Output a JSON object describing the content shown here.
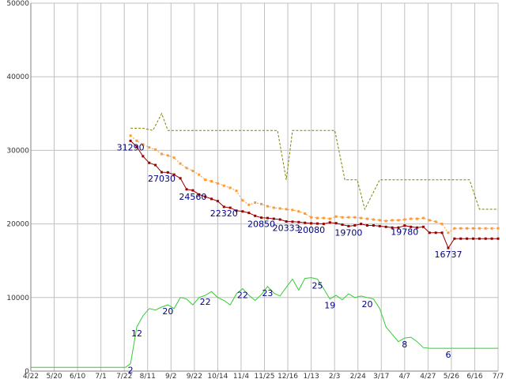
{
  "chart_data": {
    "type": "line",
    "title": "",
    "xlabel": "",
    "ylabel": "",
    "ylim": [
      0,
      50000
    ],
    "y_ticks": [
      0,
      10000,
      20000,
      30000,
      40000,
      50000
    ],
    "y_tick_labels": [
      "0",
      "10000",
      "20000",
      "30000",
      "40000",
      "50000"
    ],
    "x_tick_labels": [
      "4/22",
      "5/20",
      "6/10",
      "7/1",
      "7/22",
      "8/11",
      "9/2",
      "9/22",
      "10/14",
      "11/4",
      "11/25",
      "12/16",
      "1/13",
      "2/3",
      "2/24",
      "3/17",
      "4/7",
      "4/27",
      "5/26",
      "6/16",
      "7/7"
    ],
    "grid": true,
    "legend": "none",
    "series": [
      {
        "color": "#990000",
        "style": "solid-markers",
        "x": [
          7.0,
          7.25,
          7.5,
          7.75,
          8.0,
          8.25,
          8.5,
          8.75,
          9.0,
          9.25,
          9.5,
          9.75,
          10.0,
          10.25,
          10.5,
          10.75,
          11.0,
          11.25,
          11.5,
          11.75,
          12.0,
          12.25,
          12.5,
          12.75,
          13.0,
          13.25,
          13.5,
          13.75,
          14.0,
          14.25,
          14.5,
          14.75,
          15.0,
          15.25,
          15.5,
          15.75,
          16.0,
          16.25,
          16.5,
          16.75,
          17.0,
          17.25,
          17.5,
          17.75,
          18.0,
          18.25,
          18.5,
          18.75,
          19.0,
          19.25,
          19.5,
          19.75,
          20.0,
          20.25,
          20.5,
          20.75,
          21.0,
          21.25,
          21.5,
          21.75
        ],
        "y": [
          31290,
          30500,
          29200,
          28300,
          28000,
          27030,
          27000,
          26700,
          26200,
          24700,
          24560,
          24000,
          23700,
          23400,
          23100,
          22320,
          22200,
          21800,
          21700,
          21500,
          21100,
          20850,
          20800,
          20700,
          20600,
          20333,
          20300,
          20250,
          20150,
          20080,
          20050,
          20000,
          20200,
          20100,
          19900,
          19700,
          19800,
          20000,
          19800,
          19800,
          19700,
          19600,
          19500,
          19500,
          19780,
          19600,
          19500,
          19600,
          18800,
          18800,
          18800,
          16737,
          18000,
          18000,
          18000,
          18000,
          18000,
          18000,
          18000,
          18000
        ]
      },
      {
        "color": "#ff9933",
        "style": "dotted-markers",
        "x": [
          7.0,
          7.25,
          7.5,
          7.75,
          8.0,
          8.25,
          8.5,
          8.75,
          9.0,
          9.25,
          9.5,
          9.75,
          10.0,
          10.25,
          10.5,
          10.75,
          11.0,
          11.25,
          11.5,
          11.75,
          12.0,
          12.25,
          12.5,
          12.75,
          13.0,
          13.25,
          13.5,
          13.75,
          14.0,
          14.25,
          14.5,
          14.75,
          15.0,
          15.25,
          15.5,
          15.75,
          16.0,
          16.25,
          16.5,
          16.75,
          17.0,
          17.25,
          17.5,
          17.75,
          18.0,
          18.25,
          18.5,
          18.75,
          19.0,
          19.25,
          19.5,
          19.75,
          20.0,
          20.25,
          20.5,
          20.75,
          21.0,
          21.25,
          21.5,
          21.75
        ],
        "y": [
          32000,
          31300,
          30800,
          30400,
          30100,
          29500,
          29300,
          29000,
          28200,
          27600,
          27200,
          26700,
          26000,
          25800,
          25500,
          25200,
          24900,
          24500,
          23200,
          22600,
          22900,
          22700,
          22400,
          22200,
          22100,
          22000,
          21900,
          21700,
          21400,
          20900,
          20800,
          20800,
          20700,
          21000,
          20900,
          20900,
          20900,
          20800,
          20700,
          20600,
          20500,
          20400,
          20500,
          20500,
          20600,
          20700,
          20700,
          20800,
          20500,
          20300,
          20000,
          18800,
          19400,
          19400,
          19400,
          19400,
          19400,
          19400,
          19400,
          19400
        ]
      },
      {
        "color": "#808000",
        "style": "dashed",
        "x": [
          7.0,
          7.5,
          7.9,
          8.25,
          8.5,
          9.0,
          10.0,
          11.0,
          11.9,
          12.25,
          12.7,
          12.9,
          13.25,
          13.5,
          14.0,
          14.5,
          15.0,
          15.2,
          15.6,
          15.8,
          16.1,
          16.4,
          17.0,
          18.0,
          19.0,
          20.0,
          20.6,
          21.0,
          21.3,
          21.75
        ],
        "y": [
          33000,
          33000,
          32700,
          35000,
          32700,
          32700,
          32700,
          32700,
          32700,
          32700,
          32700,
          32700,
          26000,
          32700,
          32700,
          32700,
          32700,
          32700,
          26000,
          26000,
          26000,
          22000,
          26000,
          26000,
          26000,
          26000,
          26000,
          22000,
          22000,
          22000
        ]
      },
      {
        "color": "#33cc33",
        "style": "solid",
        "x": [
          3.0,
          4.0,
          5.0,
          6.0,
          6.8,
          7.0,
          7.25,
          7.5,
          7.75,
          8.0,
          8.25,
          8.5,
          8.75,
          9.0,
          9.25,
          9.5,
          9.75,
          10.0,
          10.25,
          10.5,
          10.75,
          11.0,
          11.25,
          11.5,
          11.75,
          12.0,
          12.25,
          12.5,
          12.75,
          13.0,
          13.25,
          13.5,
          13.75,
          14.0,
          14.25,
          14.5,
          14.75,
          15.0,
          15.25,
          15.5,
          15.75,
          16.0,
          16.25,
          16.5,
          16.75,
          17.0,
          17.25,
          17.5,
          17.75,
          18.0,
          18.25,
          18.5,
          18.75,
          19.0,
          19.25,
          19.5,
          19.75,
          20.0,
          20.25,
          20.5,
          20.75,
          21.0,
          21.5,
          21.75
        ],
        "y": [
          500,
          500,
          500,
          500,
          500,
          1000,
          6000,
          7500,
          8500,
          8300,
          8700,
          9000,
          8500,
          10000,
          9800,
          9000,
          10000,
          10300,
          10800,
          10000,
          9600,
          9000,
          10500,
          11200,
          10300,
          9600,
          10400,
          11500,
          10600,
          10200,
          11400,
          12500,
          11000,
          12600,
          12700,
          12500,
          11200,
          9800,
          10300,
          9700,
          10500,
          10000,
          10200,
          10000,
          9800,
          8500,
          6000,
          5000,
          4000,
          4500,
          4600,
          4000,
          3200,
          3100,
          3100,
          3100,
          3100,
          3100,
          3100,
          3100,
          3100,
          3100,
          3100,
          3100
        ]
      }
    ],
    "annotations": [
      {
        "x": 7.0,
        "y": 31290,
        "text": "31290"
      },
      {
        "x": 8.25,
        "y": 27030,
        "text": "27030"
      },
      {
        "x": 9.5,
        "y": 24560,
        "text": "24560"
      },
      {
        "x": 10.75,
        "y": 22320,
        "text": "22320"
      },
      {
        "x": 12.25,
        "y": 20850,
        "text": "20850"
      },
      {
        "x": 13.25,
        "y": 20333,
        "text": "20333"
      },
      {
        "x": 14.25,
        "y": 20080,
        "text": "20080"
      },
      {
        "x": 15.75,
        "y": 19700,
        "text": "19700"
      },
      {
        "x": 18.0,
        "y": 19780,
        "text": "19780"
      },
      {
        "x": 19.75,
        "y": 16737,
        "text": "16737"
      },
      {
        "x": 7.25,
        "y": 6000,
        "text": "12"
      },
      {
        "x": 8.5,
        "y": 9000,
        "text": "20"
      },
      {
        "x": 10.0,
        "y": 10300,
        "text": "22"
      },
      {
        "x": 11.5,
        "y": 11200,
        "text": "22"
      },
      {
        "x": 12.5,
        "y": 11500,
        "text": "23"
      },
      {
        "x": 14.5,
        "y": 12500,
        "text": "25"
      },
      {
        "x": 15.0,
        "y": 9800,
        "text": "19"
      },
      {
        "x": 16.5,
        "y": 10000,
        "text": "20"
      },
      {
        "x": 18.0,
        "y": 4500,
        "text": "8"
      },
      {
        "x": 19.75,
        "y": 3100,
        "text": "6"
      },
      {
        "x": 7.0,
        "y": 1000,
        "text": "2"
      }
    ]
  }
}
